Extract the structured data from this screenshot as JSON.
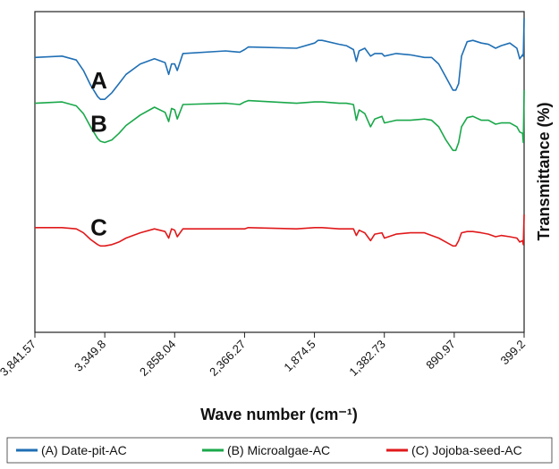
{
  "chart_data": {
    "type": "line",
    "xlabel": "Wave number (cm⁻¹)",
    "ylabel": "Transmittance (%)",
    "xlim": [
      3841.57,
      399.2
    ],
    "x_ticks": [
      "3,841.57",
      "3,349.8",
      "2,858.04",
      "2,366.27",
      "1,874.5",
      "1,382.73",
      "890.97",
      "399.2"
    ],
    "y_ticks_shown": false,
    "legend_position": "bottom",
    "series": [
      {
        "name": "(A) Date-pit-AC",
        "marker": "A",
        "color": "#1f6fb5",
        "x": [
          3841.57,
          3650,
          3550,
          3500,
          3450,
          3400,
          3380,
          3349.8,
          3300,
          3250,
          3200,
          3100,
          3000,
          2925,
          2900,
          2880,
          2858,
          2840,
          2800,
          2500,
          2400,
          2366,
          2340,
          2000,
          1874,
          1850,
          1820,
          1700,
          1650,
          1600,
          1580,
          1560,
          1520,
          1480,
          1450,
          1400,
          1382,
          1300,
          1200,
          1100,
          1050,
          1000,
          950,
          900,
          880,
          860,
          840,
          800,
          760,
          700,
          650,
          600,
          560,
          500,
          450,
          430,
          410,
          405,
          399.2
        ],
        "values": [
          3.5,
          3.6,
          3.3,
          2.5,
          1.4,
          0.5,
          0.3,
          0.3,
          0.8,
          1.5,
          2.2,
          3.0,
          3.4,
          3.1,
          2.2,
          3.0,
          3.0,
          2.5,
          3.8,
          4.0,
          3.9,
          4.1,
          4.3,
          4.2,
          4.6,
          4.8,
          4.8,
          4.5,
          4.4,
          4.1,
          3.2,
          4.0,
          4.2,
          3.6,
          3.8,
          3.8,
          3.6,
          3.8,
          3.7,
          3.5,
          3.5,
          3.0,
          2.0,
          1.0,
          1.0,
          1.5,
          3.6,
          4.7,
          4.8,
          4.6,
          4.5,
          4.2,
          4.4,
          4.6,
          4.2,
          3.4,
          3.7,
          3.6,
          6.5
        ]
      },
      {
        "name": "(B) Microalgae-AC",
        "marker": "B",
        "color": "#1aa84a",
        "x": [
          3841.57,
          3650,
          3550,
          3500,
          3450,
          3400,
          3380,
          3349.8,
          3300,
          3250,
          3200,
          3100,
          3000,
          2925,
          2900,
          2880,
          2858,
          2840,
          2800,
          2500,
          2400,
          2366,
          2340,
          2000,
          1874,
          1850,
          1820,
          1700,
          1650,
          1600,
          1580,
          1560,
          1520,
          1480,
          1450,
          1400,
          1382,
          1300,
          1200,
          1100,
          1050,
          1000,
          950,
          900,
          880,
          860,
          840,
          800,
          760,
          700,
          650,
          600,
          560,
          500,
          450,
          430,
          410,
          405,
          399.2
        ],
        "values": [
          0.0,
          0.1,
          -0.2,
          -0.8,
          -1.8,
          -2.7,
          -2.9,
          -3.0,
          -2.8,
          -2.3,
          -1.7,
          -0.9,
          -0.3,
          -0.7,
          -1.4,
          -0.4,
          -0.5,
          -1.2,
          -0.1,
          0.0,
          -0.1,
          0.1,
          0.2,
          0.0,
          0.1,
          0.1,
          0.1,
          0.0,
          0.0,
          -0.1,
          -1.3,
          -0.5,
          -0.8,
          -1.8,
          -1.2,
          -1.0,
          -1.5,
          -1.3,
          -1.3,
          -1.2,
          -1.3,
          -1.8,
          -2.8,
          -3.6,
          -3.6,
          -3.0,
          -1.8,
          -1.1,
          -1.0,
          -1.3,
          -1.3,
          -1.6,
          -1.5,
          -1.5,
          -1.8,
          -2.2,
          -2.3,
          -3.0,
          1.0
        ]
      },
      {
        "name": "(C) Jojoba-seed-AC",
        "marker": "C",
        "color": "#e0191b",
        "x": [
          3841.57,
          3650,
          3550,
          3500,
          3450,
          3400,
          3380,
          3349.8,
          3300,
          3250,
          3200,
          3100,
          3000,
          2925,
          2900,
          2880,
          2858,
          2840,
          2800,
          2500,
          2400,
          2366,
          2340,
          2000,
          1874,
          1850,
          1820,
          1700,
          1650,
          1600,
          1580,
          1560,
          1520,
          1480,
          1450,
          1400,
          1382,
          1300,
          1200,
          1100,
          1050,
          1000,
          950,
          900,
          880,
          860,
          840,
          800,
          760,
          700,
          650,
          600,
          560,
          500,
          450,
          430,
          410,
          405,
          399.2
        ],
        "values": [
          -9.5,
          -9.5,
          -9.6,
          -9.9,
          -10.4,
          -10.8,
          -10.9,
          -10.9,
          -10.8,
          -10.6,
          -10.3,
          -9.9,
          -9.6,
          -9.8,
          -10.3,
          -9.6,
          -9.7,
          -10.2,
          -9.6,
          -9.6,
          -9.6,
          -9.6,
          -9.5,
          -9.6,
          -9.5,
          -9.5,
          -9.5,
          -9.6,
          -9.6,
          -9.6,
          -10.1,
          -9.7,
          -9.9,
          -10.5,
          -10.0,
          -9.9,
          -10.3,
          -10.0,
          -9.9,
          -9.9,
          -10.1,
          -10.3,
          -10.6,
          -10.9,
          -10.9,
          -10.5,
          -9.9,
          -9.8,
          -9.8,
          -9.9,
          -10.0,
          -10.2,
          -10.1,
          -10.2,
          -10.3,
          -10.6,
          -10.5,
          -10.8,
          -8.5
        ]
      }
    ]
  }
}
